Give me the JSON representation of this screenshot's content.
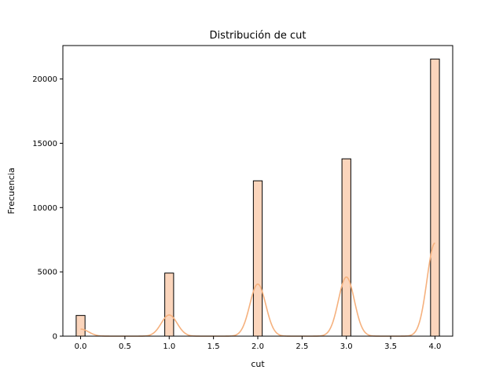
{
  "chart_data": {
    "type": "bar",
    "title": "Distribución de cut",
    "xlabel": "cut",
    "ylabel": "Frecuencia",
    "xlim": [
      -0.2,
      4.2
    ],
    "ylim": [
      0,
      22600
    ],
    "xticks": [
      "0.0",
      "0.5",
      "1.0",
      "1.5",
      "2.0",
      "2.5",
      "3.0",
      "3.5",
      "4.0"
    ],
    "yticks": [
      "0",
      "5000",
      "10000",
      "15000",
      "20000"
    ],
    "bin_width": 0.1,
    "bars": [
      {
        "x": 0.0,
        "value": 1610
      },
      {
        "x": 1.0,
        "value": 4906
      },
      {
        "x": 2.0,
        "value": 12082
      },
      {
        "x": 3.0,
        "value": 13791
      },
      {
        "x": 4.0,
        "value": 21551
      }
    ],
    "kde_peaks": [
      {
        "x": 0.0,
        "value": 550
      },
      {
        "x": 1.0,
        "value": 1650
      },
      {
        "x": 2.0,
        "value": 4050
      },
      {
        "x": 3.0,
        "value": 4600
      },
      {
        "x": 4.0,
        "value": 7250
      }
    ],
    "grid": false,
    "bar_fill": "#fbd5bc",
    "bar_edge": "#000000",
    "kde_color": "#f5b17e"
  }
}
